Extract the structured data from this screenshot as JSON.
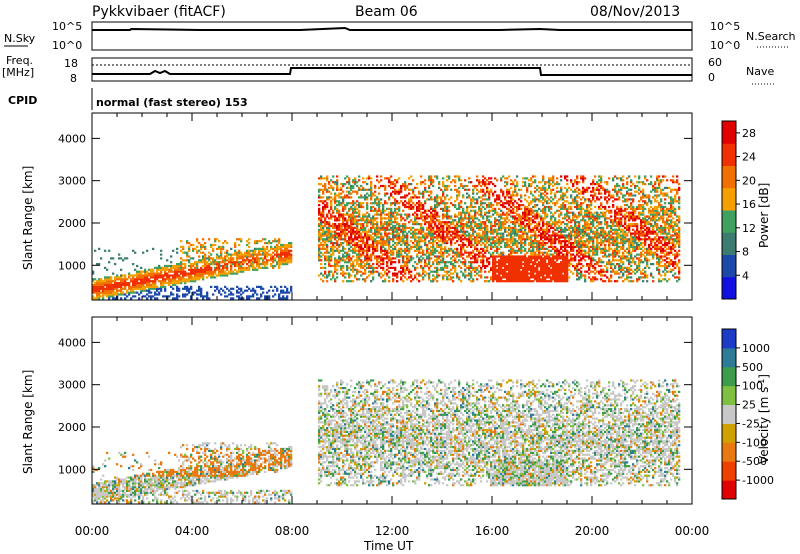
{
  "header": {
    "title": "Pykkvibaer (fitACF)",
    "beam": "Beam 06",
    "date": "08/Nov/2013"
  },
  "noise_panel": {
    "left_label": "N.Sky",
    "left_tick_top": "10^5",
    "left_tick_bottom": "10^0",
    "right_tick_top": "10^5",
    "right_tick_bottom": "10^0",
    "right_label": "N.Search"
  },
  "freq_panel": {
    "left_label_1": "Freq.",
    "left_label_2": "[MHz]",
    "left_tick_top": "18",
    "left_tick_bottom": "8",
    "right_tick_top": "60",
    "right_tick_bottom": "0",
    "right_label": "Nave"
  },
  "cpid": {
    "label": "CPID",
    "value": "normal (fast stereo) 153"
  },
  "colors": {
    "power_scale": [
      "#1010e0",
      "#1c48a8",
      "#3c7c70",
      "#40a060",
      "#f4a000",
      "#f07000",
      "#f03000",
      "#e00000"
    ],
    "velocity_scale": [
      "#1c3cc8",
      "#2c7c98",
      "#3c9c4c",
      "#80c040",
      "#c8c8c8",
      "#d0a000",
      "#e87810",
      "#f04000",
      "#e00000"
    ]
  },
  "chart_data": [
    {
      "type": "heatmap",
      "quantity": "Power",
      "xlabel": "",
      "ylabel": "Slant Range [km]",
      "x_ticks": [
        "00:00",
        "04:00",
        "08:00",
        "12:00",
        "16:00",
        "20:00",
        "00:00"
      ],
      "y_ticks": [
        "1000",
        "2000",
        "3000",
        "4000"
      ],
      "ylim": [
        180,
        4600
      ],
      "xlim_hours": [
        0,
        24
      ],
      "colorbar": {
        "label": "Power [dB]",
        "ticks": [
          "4",
          "8",
          "12",
          "16",
          "20",
          "24",
          "28"
        ],
        "range": [
          0,
          30
        ]
      }
    },
    {
      "type": "heatmap",
      "quantity": "Velocity",
      "xlabel": "Time UT",
      "ylabel": "Slant Range [km]",
      "x_ticks": [
        "00:00",
        "04:00",
        "08:00",
        "12:00",
        "16:00",
        "20:00",
        "00:00"
      ],
      "y_ticks": [
        "1000",
        "2000",
        "3000",
        "4000"
      ],
      "ylim": [
        180,
        4600
      ],
      "xlim_hours": [
        0,
        24
      ],
      "colorbar": {
        "label": "Velocity [m s^-1]",
        "ticks": [
          "1000",
          "500",
          "100",
          "25",
          "-25",
          "-100",
          "-500",
          "-1000"
        ]
      }
    }
  ]
}
